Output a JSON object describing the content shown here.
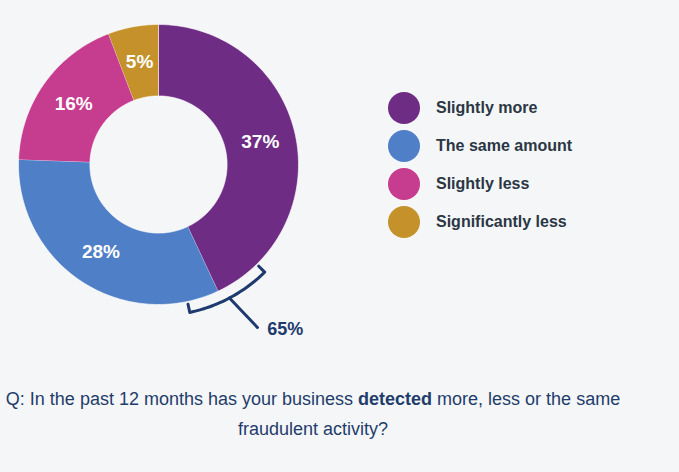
{
  "chart_data": {
    "type": "pie",
    "caption": "Q: In the past 12 months has your business detected more, less or the same fraudulent activity?",
    "caption_bold": "detected",
    "categories": [
      "Slightly more",
      "The same amount",
      "Slightly less",
      "Significantly less"
    ],
    "values": [
      37,
      28,
      16,
      5
    ],
    "value_labels": [
      "37%",
      "28%",
      "16%",
      "5%"
    ],
    "colors": [
      "#6e2c84",
      "#4f7fc6",
      "#c63c8e",
      "#c4912a"
    ],
    "data_labels": true,
    "legend": "right",
    "annotation": "65%"
  }
}
